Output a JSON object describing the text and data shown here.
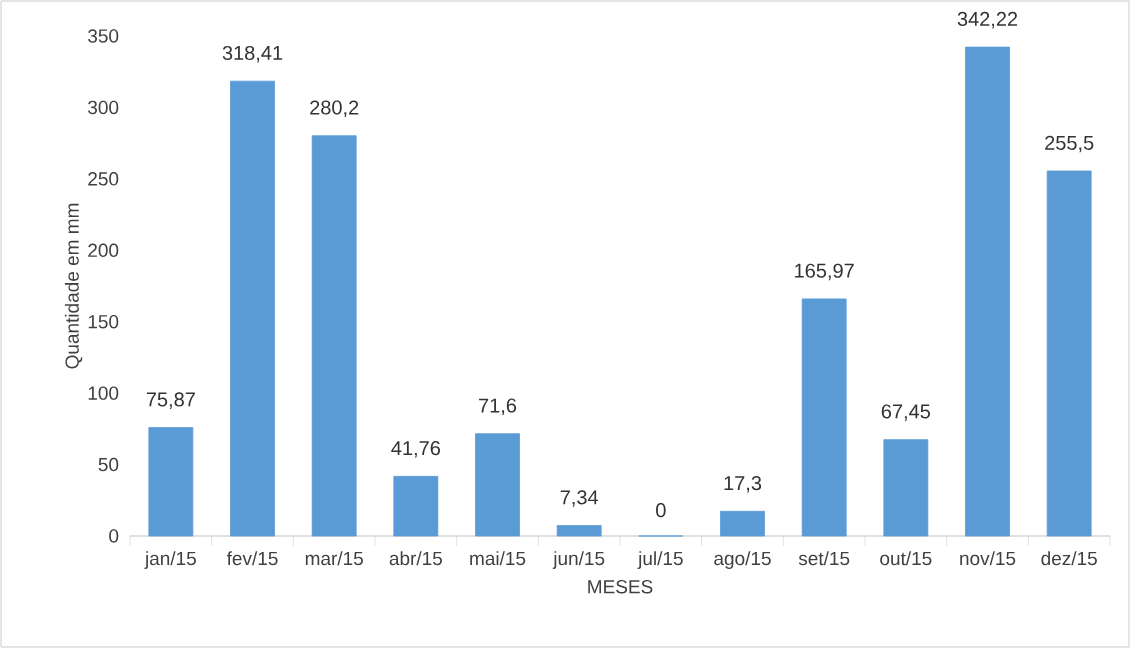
{
  "chart_data": {
    "type": "bar",
    "xlabel": "MESES",
    "ylabel": "Quantidade em mm",
    "categories": [
      "jan/15",
      "fev/15",
      "mar/15",
      "abr/15",
      "mai/15",
      "jun/15",
      "jul/15",
      "ago/15",
      "set/15",
      "out/15",
      "nov/15",
      "dez/15"
    ],
    "values": [
      75.87,
      318.41,
      280.2,
      41.76,
      71.6,
      7.34,
      0,
      17.3,
      165.97,
      67.45,
      342.22,
      255.5
    ],
    "value_labels": [
      "75,87",
      "318,41",
      "280,2",
      "41,76",
      "71,6",
      "7,34",
      "0",
      "17,3",
      "165,97",
      "67,45",
      "342,22",
      "255,5"
    ],
    "color": "#5b9bd5",
    "ylim": [
      0,
      350
    ],
    "yticks": [
      0,
      50,
      100,
      150,
      200,
      250,
      300,
      350
    ],
    "grid": false
  }
}
